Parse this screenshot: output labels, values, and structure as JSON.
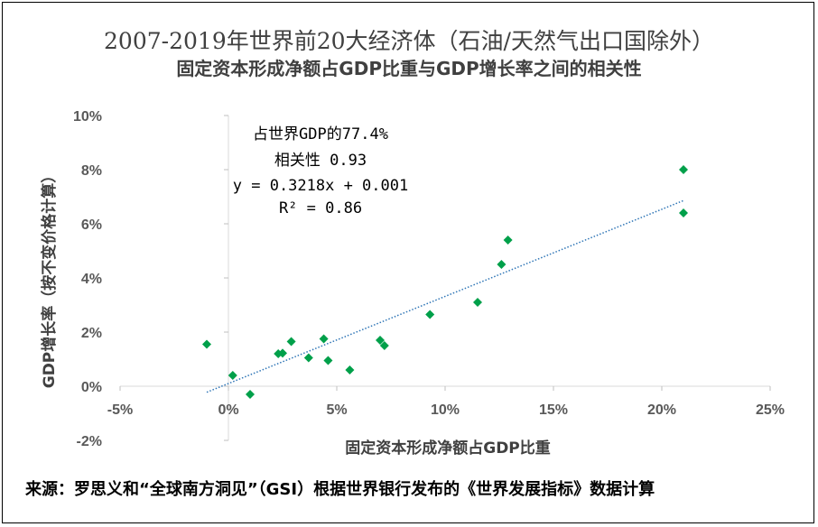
{
  "title_main": "2007-2019年世界前20大经济体（石油/天然气出口国除外）",
  "title_sub": "固定资本形成净额占GDP比重与GDP增长率之间的相关性",
  "source": "来源：罗思义和“全球南方洞见”（GSI）根据世界银行发布的《世界发展指标》数据计算",
  "chart_data": {
    "type": "scatter",
    "xlabel": "固定资本形成净额占GDP比重",
    "ylabel": "GDP增长率（按不变价格计算）",
    "xlim": [
      -5,
      25
    ],
    "ylim": [
      -2,
      10
    ],
    "x_ticks": [
      -5,
      0,
      5,
      10,
      15,
      20,
      25
    ],
    "x_tick_labels": [
      "-5%",
      "0%",
      "5%",
      "10%",
      "15%",
      "20%",
      "25%"
    ],
    "y_ticks": [
      -2,
      0,
      2,
      4,
      6,
      8,
      10
    ],
    "y_tick_labels": [
      "-2%",
      "0%",
      "2%",
      "4%",
      "6%",
      "8%",
      "10%"
    ],
    "marker_color": "#00a04a",
    "trend_color": "#2e75b6",
    "trendline": {
      "slope": 0.3218,
      "intercept": 0.1,
      "x_range": [
        -1,
        21
      ]
    },
    "annotations": [
      "占世界GDP的77.4%",
      "相关性 0.93",
      "y = 0.3218x + 0.001",
      "R² = 0.86"
    ],
    "points": [
      {
        "x": -1.0,
        "y": 1.55
      },
      {
        "x": 0.2,
        "y": 0.4
      },
      {
        "x": 1.0,
        "y": -0.3
      },
      {
        "x": 2.3,
        "y": 1.2
      },
      {
        "x": 2.5,
        "y": 1.22
      },
      {
        "x": 2.9,
        "y": 1.65
      },
      {
        "x": 3.7,
        "y": 1.05
      },
      {
        "x": 4.4,
        "y": 1.75
      },
      {
        "x": 4.6,
        "y": 0.95
      },
      {
        "x": 5.6,
        "y": 0.6
      },
      {
        "x": 7.0,
        "y": 1.7
      },
      {
        "x": 7.2,
        "y": 1.5
      },
      {
        "x": 9.3,
        "y": 2.65
      },
      {
        "x": 11.5,
        "y": 3.1
      },
      {
        "x": 12.6,
        "y": 4.5
      },
      {
        "x": 12.9,
        "y": 5.4
      },
      {
        "x": 21.0,
        "y": 8.0
      },
      {
        "x": 21.0,
        "y": 6.4
      }
    ]
  }
}
